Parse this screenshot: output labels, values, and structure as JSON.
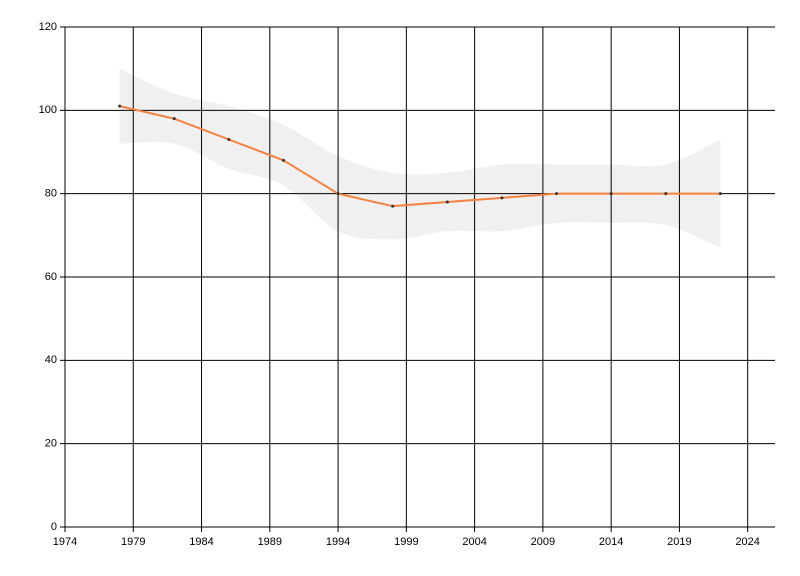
{
  "chart_data": {
    "type": "line",
    "x": [
      1978,
      1982,
      1986,
      1990,
      1994,
      1998,
      2002,
      2006,
      2010,
      2014,
      2018,
      2022
    ],
    "values": [
      101,
      98,
      93,
      88,
      80,
      77,
      78,
      79,
      80,
      80,
      80,
      80
    ],
    "color": "#f5813f",
    "band": {
      "upper": [
        110,
        104,
        101,
        96.5,
        89,
        85,
        85,
        87,
        87,
        87,
        87,
        93
      ],
      "lower": [
        92,
        92,
        86,
        82,
        71,
        69,
        71,
        71,
        73,
        73,
        72.5,
        67
      ],
      "color": "#f0f0f0"
    },
    "xlim": [
      1974,
      2026
    ],
    "xticks": [
      1974,
      1979,
      1984,
      1989,
      1994,
      1999,
      2004,
      2009,
      2014,
      2019,
      2024
    ],
    "ylim": [
      0,
      120
    ],
    "yticks": [
      0,
      20,
      40,
      60,
      80,
      100,
      120
    ],
    "grid": true
  }
}
